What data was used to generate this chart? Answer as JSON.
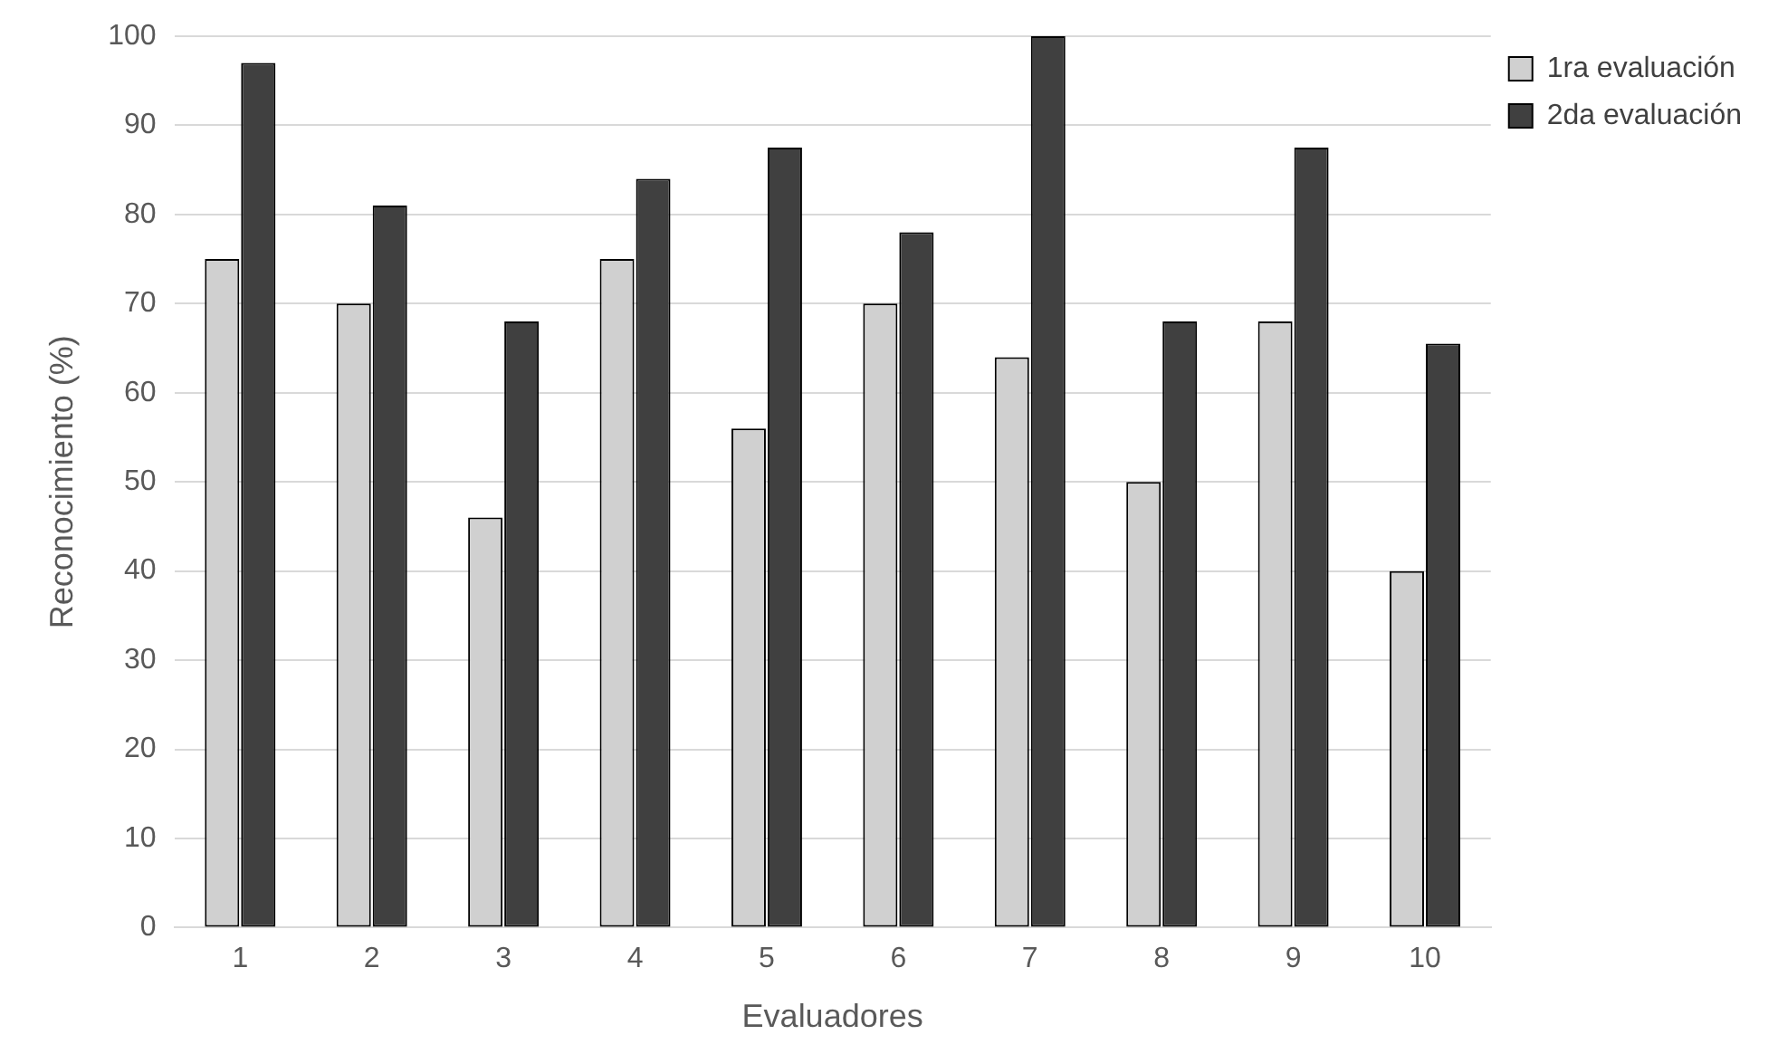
{
  "chart_data": {
    "type": "bar",
    "xlabel": "Evaluadores",
    "ylabel": "Reconocimiento (%)",
    "categories": [
      "1",
      "2",
      "3",
      "4",
      "5",
      "6",
      "7",
      "8",
      "9",
      "10"
    ],
    "series": [
      {
        "name": "1ra evaluación",
        "color": "#d0d0d0",
        "values": [
          75,
          70,
          46,
          75,
          56,
          70,
          64,
          50,
          68,
          40
        ]
      },
      {
        "name": "2da evaluación",
        "color": "#404040",
        "values": [
          97,
          81,
          68,
          84,
          87.5,
          78,
          100,
          68,
          87.5,
          65.5
        ]
      }
    ],
    "ylim": [
      0,
      100
    ],
    "yticks": [
      0,
      10,
      20,
      30,
      40,
      50,
      60,
      70,
      80,
      90,
      100
    ],
    "grid": "y",
    "legend": "top right"
  }
}
